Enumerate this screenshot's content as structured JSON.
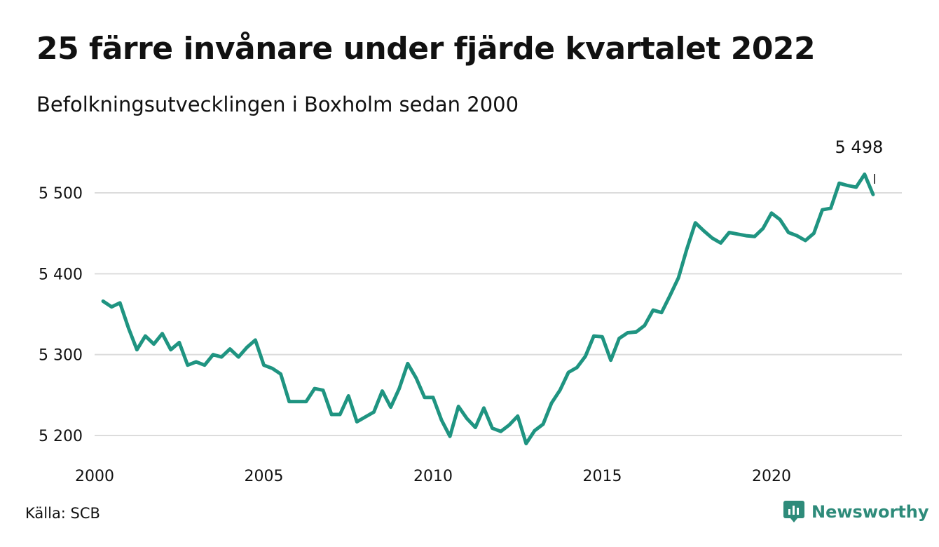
{
  "title": "25 färre invånare under fjärde kvartalet 2022",
  "subtitle": "Befolkningsutvecklingen i Boxholm sedan 2000",
  "source": "Källa: SCB",
  "brand": "Newsworthy",
  "colors": {
    "line": "#1f9481",
    "grid": "#dcdcdc",
    "brand": "#2e8b7a"
  },
  "chart_data": {
    "type": "line",
    "title": "25 färre invånare under fjärde kvartalet 2022",
    "subtitle": "Befolkningsutvecklingen i Boxholm sedan 2000",
    "xlabel": "",
    "ylabel": "",
    "x_ticks": [
      2000,
      2005,
      2010,
      2015,
      2020
    ],
    "x_tick_labels": [
      "2000",
      "2005",
      "2010",
      "2015",
      "2020"
    ],
    "y_ticks": [
      5200,
      5300,
      5400,
      5500
    ],
    "y_tick_labels": [
      "5 200",
      "5 300",
      "5 400",
      "5 500"
    ],
    "xlim": [
      2000,
      2023.5
    ],
    "ylim": [
      5180,
      5530
    ],
    "grid": "horizontal",
    "series": [
      {
        "x_start": 2000.25,
        "x_step": 0.25,
        "values": [
          5366,
          5359,
          5364,
          5333,
          5306,
          5323,
          5313,
          5326,
          5306,
          5315,
          5287,
          5291,
          5287,
          5300,
          5297,
          5307,
          5297,
          5309,
          5318,
          5287,
          5283,
          5276,
          5242,
          5242,
          5242,
          5258,
          5256,
          5226,
          5226,
          5249,
          5217,
          5223,
          5229,
          5255,
          5235,
          5258,
          5289,
          5271,
          5247,
          5247,
          5219,
          5199,
          5236,
          5221,
          5210,
          5234,
          5209,
          5205,
          5213,
          5224,
          5190,
          5206,
          5214,
          5240,
          5256,
          5278,
          5284,
          5298,
          5323,
          5322,
          5293,
          5320,
          5327,
          5328,
          5336,
          5355,
          5352,
          5373,
          5395,
          5431,
          5463,
          5453,
          5444,
          5438,
          5451,
          5449,
          5447,
          5446,
          5456,
          5475,
          5467,
          5451,
          5447,
          5441,
          5450,
          5479,
          5481,
          5512,
          5509,
          5507,
          5523,
          5498
        ]
      }
    ],
    "annotations": [
      {
        "text": "5 498",
        "target": "last"
      }
    ]
  }
}
